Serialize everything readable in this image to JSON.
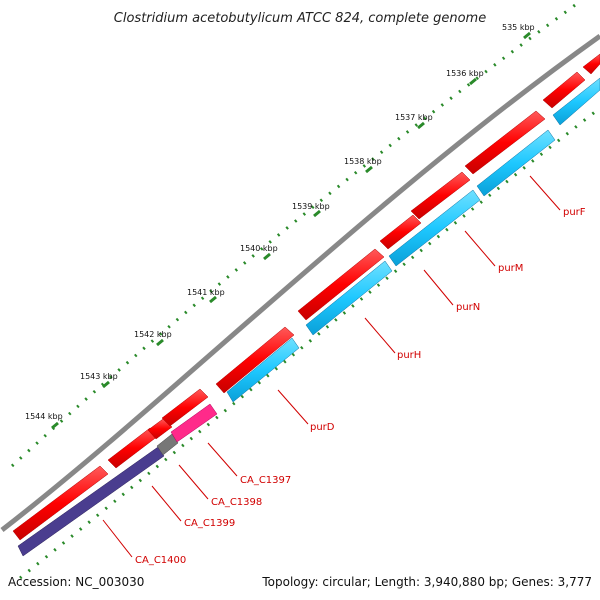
{
  "title": "Clostridium acetobutylicum ATCC 824, complete genome",
  "footer": {
    "accession": "Accession: NC_003030",
    "summary": "Topology: circular; Length: 3,940,880 bp; Genes: 3,777"
  },
  "colors": {
    "backbone": "#888888",
    "red_feature": "#ff0000",
    "cyan_feature": "#1ec8ff",
    "indigo_feature": "#4a3d8f",
    "pink_feature": "#ff2a8a",
    "grey_feature": "#777777",
    "ticks": "#2a8a2a",
    "label": "#d10000"
  },
  "ticks": [
    "535 kbp",
    "1536 kbp",
    "1537 kbp",
    "1538 kbp",
    "1539 kbp",
    "1540 kbp",
    "1541 kbp",
    "1542 kbp",
    "1543 kbp",
    "1544 kbp"
  ],
  "genes": [
    "purF",
    "purM",
    "purN",
    "purH",
    "purD",
    "CA_C1397",
    "CA_C1398",
    "CA_C1399",
    "CA_C1400"
  ]
}
